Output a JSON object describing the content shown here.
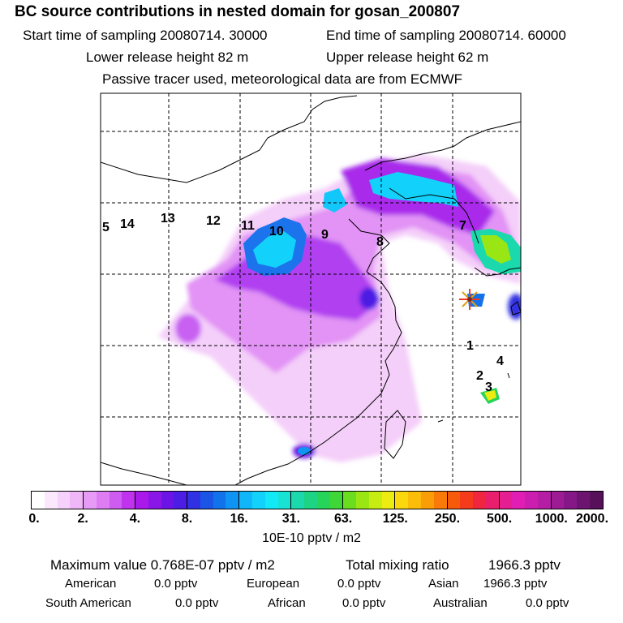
{
  "header": {
    "title": "BC  source contributions in nested domain for gosan_200807",
    "start_time": "Start time of sampling 20080714. 30000",
    "end_time": "End time of sampling 20080714. 60000",
    "lower_height": "Lower release height   82 m",
    "upper_height": "Upper release height   62 m",
    "note": "Passive tracer used, meteorological data are from ECMWF"
  },
  "map": {
    "region_labels": [
      "5",
      "14",
      "13",
      "12",
      "11",
      "10",
      "9",
      "8",
      "7",
      "1",
      "4",
      "2",
      "3"
    ],
    "receptor_marker": "receptor-star"
  },
  "colorbar": {
    "colors": [
      "#ffffff",
      "#fbe8fd",
      "#f6d1fb",
      "#efb6f8",
      "#e89bf6",
      "#dd7cf3",
      "#cf5cf0",
      "#c033ee",
      "#a919e9",
      "#8a16e8",
      "#6c14e6",
      "#4c1de4",
      "#3031e2",
      "#1b55e6",
      "#1172ec",
      "#0f94f3",
      "#11b6f8",
      "#12d2fb",
      "#13e8f6",
      "#17e2d4",
      "#1bd9ac",
      "#1dd384",
      "#26d45a",
      "#3fd737",
      "#69dd1e",
      "#9ae614",
      "#c6ec12",
      "#ecec12",
      "#fbd70e",
      "#fbbd0a",
      "#fa9e08",
      "#f97a08",
      "#f85a0c",
      "#f63a1c",
      "#f0253f",
      "#e91f6d",
      "#e51e92",
      "#e01eb3",
      "#cb1eb1",
      "#b51da5",
      "#9e1b96",
      "#851886",
      "#6c1470",
      "#57105a"
    ],
    "tick_labels": [
      "0.",
      "2.",
      "4.",
      "8.",
      "16.",
      "31.",
      "63.",
      "125.",
      "250.",
      "500.",
      "1000.",
      "2000."
    ],
    "units": "10E-10 pptv / m2"
  },
  "stats": {
    "maximum_label": "Maximum value  0.768E-07 pptv / m2",
    "total_label": "Total mixing ratio",
    "total_value": "1966.3 pptv",
    "american_label": "American",
    "american_value": "0.0 pptv",
    "european_label": "European",
    "european_value": "0.0 pptv",
    "asian_label": "Asian",
    "asian_value": "1966.3 pptv",
    "south_american_label": "South American",
    "south_american_value": "0.0 pptv",
    "african_label": "African",
    "african_value": "0.0 pptv",
    "australian_label": "Australian",
    "australian_value": "0.0 pptv"
  }
}
